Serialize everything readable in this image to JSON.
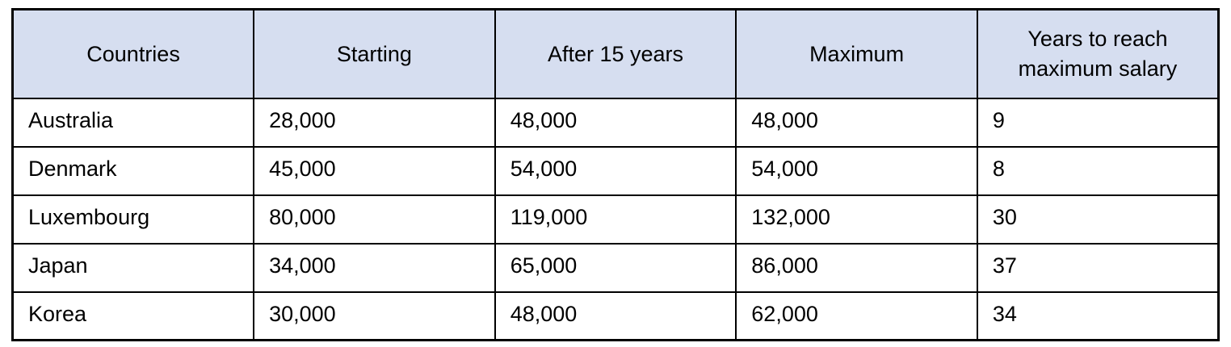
{
  "colors": {
    "header_bg": "#d6def0",
    "border": "#000000",
    "page_bg": "#ffffff",
    "text": "#000000"
  },
  "table": {
    "header": [
      "Countries",
      "Starting",
      "After 15 years",
      "Maximum",
      "Years to reach maximum salary"
    ],
    "rows": [
      [
        "Australia",
        "28,000",
        "48,000",
        "48,000",
        "9"
      ],
      [
        "Denmark",
        "45,000",
        "54,000",
        "54,000",
        "8"
      ],
      [
        "Luxembourg",
        "80,000",
        "119,000",
        "132,000",
        "30"
      ],
      [
        "Japan",
        "34,000",
        "65,000",
        "86,000",
        "37"
      ],
      [
        "Korea",
        "30,000",
        "48,000",
        "62,000",
        "34"
      ]
    ]
  },
  "chart_data": {
    "type": "table",
    "title": "",
    "columns": [
      "Countries",
      "Starting",
      "After 15 years",
      "Maximum",
      "Years to reach maximum salary"
    ],
    "rows": [
      {
        "country": "Australia",
        "starting": 28000,
        "after_15_years": 48000,
        "maximum": 48000,
        "years_to_reach_maximum_salary": 9
      },
      {
        "country": "Denmark",
        "starting": 45000,
        "after_15_years": 54000,
        "maximum": 54000,
        "years_to_reach_maximum_salary": 8
      },
      {
        "country": "Luxembourg",
        "starting": 80000,
        "after_15_years": 119000,
        "maximum": 132000,
        "years_to_reach_maximum_salary": 30
      },
      {
        "country": "Japan",
        "starting": 34000,
        "after_15_years": 65000,
        "maximum": 86000,
        "years_to_reach_maximum_salary": 37
      },
      {
        "country": "Korea",
        "starting": 30000,
        "after_15_years": 48000,
        "maximum": 62000,
        "years_to_reach_maximum_salary": 34
      }
    ]
  }
}
